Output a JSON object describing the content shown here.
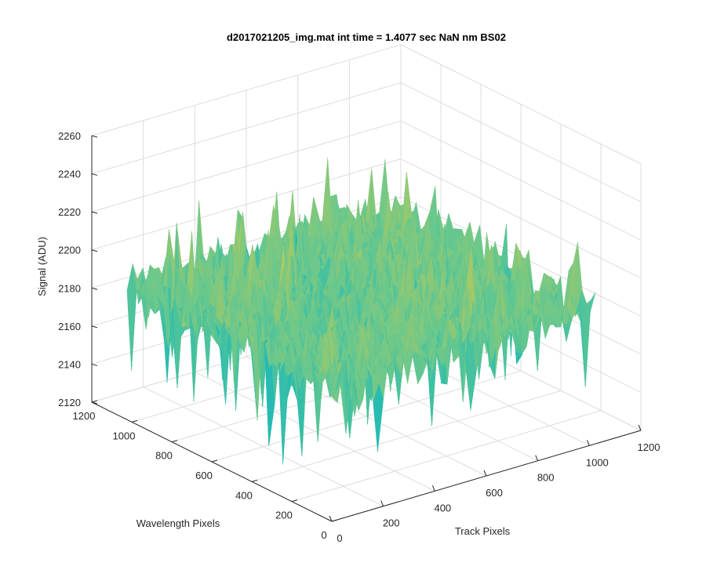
{
  "chart_data": {
    "type": "surface",
    "title": "d2017021205_img.mat int time = 1.4077 sec  NaN nm BS02",
    "xlabel": "Track Pixels",
    "ylabel": "Wavelength Pixels",
    "zlabel": "Signal (ADU)",
    "xlim": [
      0,
      1200
    ],
    "ylim": [
      0,
      1200
    ],
    "zlim": [
      2120,
      2260
    ],
    "x_ticks": [
      0,
      200,
      400,
      600,
      800,
      1000,
      1200
    ],
    "y_ticks": [
      0,
      200,
      400,
      600,
      800,
      1000,
      1200
    ],
    "z_ticks": [
      2120,
      2140,
      2160,
      2180,
      2200,
      2220,
      2240,
      2260
    ],
    "x_tick_labels": [
      "0",
      "200",
      "400",
      "600",
      "800",
      "1000",
      "1200"
    ],
    "y_tick_labels": [
      "0",
      "200",
      "400",
      "600",
      "800",
      "1000",
      "1200"
    ],
    "z_tick_labels": [
      "2120",
      "2140",
      "2160",
      "2180",
      "2200",
      "2220",
      "2240",
      "2260"
    ],
    "data_extent": {
      "x": [
        0,
        1024
      ],
      "y": [
        0,
        1024
      ]
    },
    "signal_mean": 2190,
    "signal_noise_range": [
      2130,
      2252
    ],
    "colormap": [
      "#0c6fb4",
      "#1ea2c8",
      "#27bcb0",
      "#6cc88b",
      "#b2c95e",
      "#e7c13c",
      "#f9d62a"
    ],
    "grid": true,
    "view": {
      "azimuth": -37.5,
      "elevation": 30
    }
  }
}
